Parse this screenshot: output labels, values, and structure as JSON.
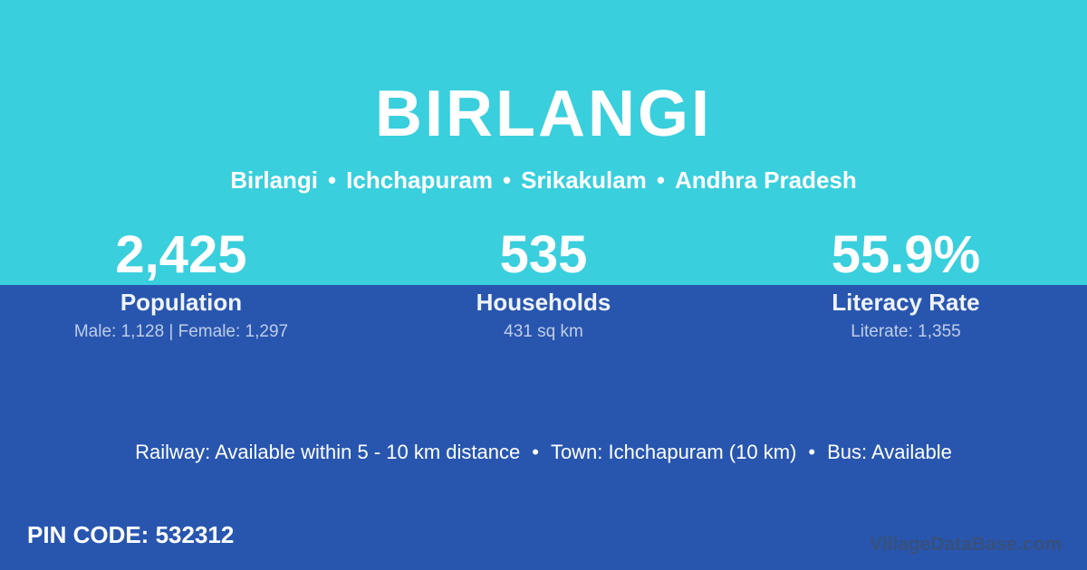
{
  "page": {
    "title": "BIRLANGI"
  },
  "breadcrumb": {
    "items": [
      "Birlangi",
      "Ichchapuram",
      "Srikakulam",
      "Andhra Pradesh"
    ],
    "separator": "•"
  },
  "stats": [
    {
      "value": "2,425",
      "label": "Population",
      "detail": "Male: 1,128 | Female: 1,297"
    },
    {
      "value": "535",
      "label": "Households",
      "detail": "431 sq km"
    },
    {
      "value": "55.9%",
      "label": "Literacy Rate",
      "detail": "Literate: 1,355"
    }
  ],
  "transport": {
    "items": [
      "Railway: Available within 5 - 10 km distance",
      "Town: Ichchapuram (10 km)",
      "Bus: Available"
    ],
    "separator": "•"
  },
  "pin_code": {
    "label": "PIN CODE:",
    "value": "532312"
  },
  "watermark": "VillageDataBase.com",
  "colors": {
    "top_background": "#39CFDD",
    "bottom_background": "#2856AF",
    "text": "#FFFFFF",
    "watermark_text": "#424E5C"
  }
}
